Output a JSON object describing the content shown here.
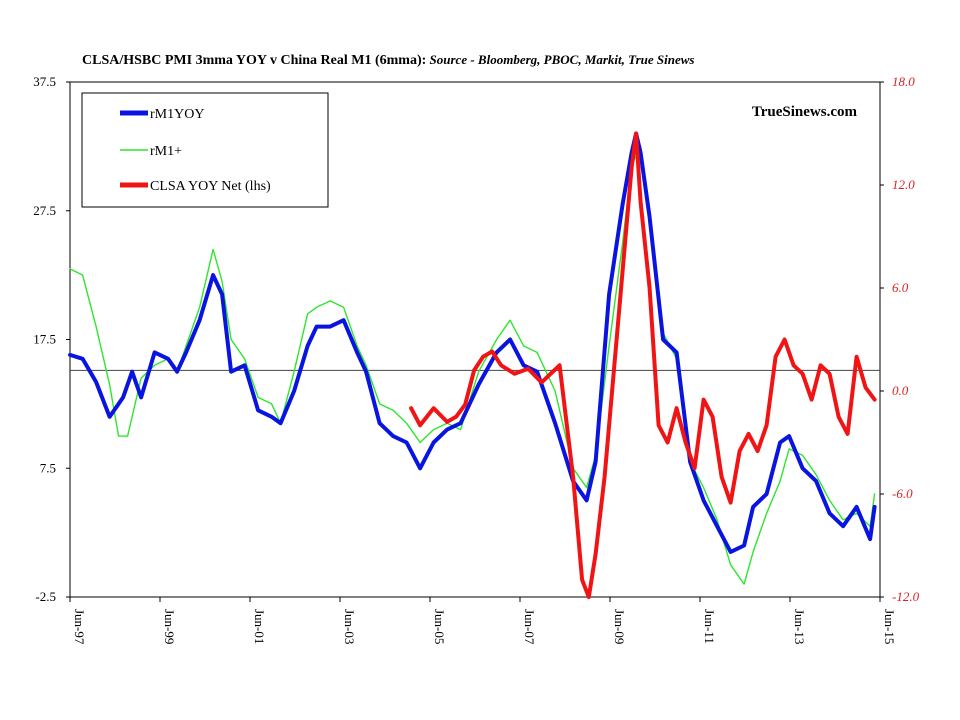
{
  "title": {
    "main": "CLSA/HSBC PMI 3mma YOY  v China Real M1 (6mma):",
    "source": " Source - Bloomberg, PBOC, Markit, True Sinews"
  },
  "watermark": "TrueSinews.com",
  "colors": {
    "rm1yoy": "#0a14e0",
    "rm1plus": "#2ee62e",
    "clsa": "#f01414",
    "right_axis_text": "#e02020"
  },
  "chart_data": {
    "type": "line",
    "title": "CLSA/HSBC PMI 3mma YOY  v China Real M1 (6mma): Source - Bloomberg, PBOC, Markit, True Sinews",
    "x_tick_labels": [
      "Jun-97",
      "Jun-99",
      "Jun-01",
      "Jun-03",
      "Jun-05",
      "Jun-07",
      "Jun-09",
      "Jun-11",
      "Jun-13",
      "Jun-15"
    ],
    "x_range": [
      1997.42,
      2015.42
    ],
    "y_left": {
      "range": [
        -2.5,
        37.5
      ],
      "ticks": [
        "37.5",
        "27.5",
        "17.5",
        "7.5",
        "-2.5"
      ]
    },
    "y_right": {
      "range": [
        -12.0,
        18.0
      ],
      "ticks": [
        "18.0",
        "12.0",
        "6.0",
        "0.0",
        "-6.0",
        "-12.0"
      ]
    },
    "reference_line_right": 1.2,
    "legend": {
      "placement": "top-left",
      "entries": [
        "rM1YOY",
        "rM1+",
        "CLSA YOY Net (lhs)"
      ]
    },
    "series": [
      {
        "name": "rM1YOY",
        "axis": "left",
        "x": [
          1997.42,
          1997.7,
          1998.0,
          1998.3,
          1998.6,
          1998.8,
          1999.0,
          1999.3,
          1999.6,
          1999.8,
          2000.0,
          2000.3,
          2000.6,
          2000.8,
          2001.0,
          2001.3,
          2001.6,
          2001.9,
          2002.1,
          2002.4,
          2002.7,
          2002.9,
          2003.2,
          2003.5,
          2003.8,
          2004.0,
          2004.3,
          2004.6,
          2004.9,
          2005.2,
          2005.5,
          2005.8,
          2006.1,
          2006.5,
          2006.9,
          2007.2,
          2007.5,
          2007.8,
          2008.2,
          2008.6,
          2008.9,
          2009.1,
          2009.4,
          2009.7,
          2009.9,
          2010.0,
          2010.1,
          2010.3,
          2010.6,
          2010.9,
          2011.2,
          2011.5,
          2011.8,
          2012.1,
          2012.4,
          2012.6,
          2012.9,
          2013.2,
          2013.4,
          2013.7,
          2014.0,
          2014.3,
          2014.6,
          2014.9,
          2015.2,
          2015.3
        ],
        "y": [
          16.3,
          16.0,
          14.2,
          11.5,
          13.0,
          15.0,
          13.0,
          16.5,
          16.0,
          15.0,
          16.5,
          19.0,
          22.5,
          21.0,
          15.0,
          15.5,
          12.0,
          11.5,
          11.0,
          13.5,
          17.0,
          18.5,
          18.5,
          19.0,
          16.5,
          15.0,
          11.0,
          10.0,
          9.5,
          7.5,
          9.5,
          10.5,
          11.0,
          14.0,
          16.5,
          17.5,
          15.5,
          15.0,
          11.0,
          6.5,
          5.0,
          8.0,
          21.0,
          28.0,
          32.0,
          33.5,
          32.0,
          27.0,
          17.5,
          16.5,
          8.0,
          5.0,
          3.0,
          1.0,
          1.5,
          4.5,
          5.5,
          9.5,
          10.0,
          7.5,
          6.5,
          4.0,
          3.0,
          4.5,
          2.0,
          4.5
        ]
      },
      {
        "name": "rM1+",
        "axis": "left",
        "x": [
          1997.42,
          1997.7,
          1998.0,
          1998.3,
          1998.5,
          1998.7,
          1999.0,
          1999.3,
          1999.6,
          1999.8,
          2000.0,
          2000.3,
          2000.6,
          2000.8,
          2001.0,
          2001.3,
          2001.6,
          2001.9,
          2002.1,
          2002.4,
          2002.7,
          2002.9,
          2003.2,
          2003.5,
          2003.8,
          2004.0,
          2004.3,
          2004.6,
          2004.9,
          2005.2,
          2005.5,
          2005.8,
          2006.1,
          2006.5,
          2006.9,
          2007.2,
          2007.5,
          2007.8,
          2008.2,
          2008.6,
          2008.9,
          2009.1,
          2009.4,
          2009.7,
          2009.9,
          2010.1,
          2010.3,
          2010.6,
          2010.9,
          2011.2,
          2011.5,
          2011.8,
          2012.1,
          2012.4,
          2012.6,
          2012.9,
          2013.2,
          2013.4,
          2013.7,
          2014.0,
          2014.3,
          2014.6,
          2014.9,
          2015.2,
          2015.3
        ],
        "y": [
          23.0,
          22.5,
          18.5,
          14.0,
          10.0,
          10.0,
          14.5,
          15.5,
          16.0,
          15.0,
          17.0,
          20.0,
          24.5,
          22.0,
          17.5,
          16.0,
          13.0,
          12.5,
          11.0,
          15.0,
          19.5,
          20.0,
          20.5,
          20.0,
          17.0,
          15.5,
          12.5,
          12.0,
          11.0,
          9.5,
          10.5,
          11.0,
          10.5,
          15.0,
          17.5,
          19.0,
          17.0,
          16.5,
          13.5,
          7.5,
          6.0,
          8.5,
          17.0,
          25.0,
          31.0,
          32.5,
          27.0,
          18.0,
          16.0,
          8.0,
          6.0,
          3.5,
          0.0,
          -1.5,
          1.0,
          4.0,
          6.5,
          9.0,
          8.5,
          7.0,
          5.0,
          3.5,
          4.0,
          3.0,
          5.5
        ]
      },
      {
        "name": "CLSA YOY Net (lhs)",
        "axis": "right",
        "x": [
          2005.0,
          2005.2,
          2005.5,
          2005.8,
          2006.0,
          2006.2,
          2006.4,
          2006.6,
          2006.8,
          2007.0,
          2007.3,
          2007.6,
          2007.9,
          2008.1,
          2008.3,
          2008.6,
          2008.8,
          2008.95,
          2009.1,
          2009.3,
          2009.6,
          2009.9,
          2010.0,
          2010.1,
          2010.3,
          2010.5,
          2010.7,
          2010.9,
          2011.1,
          2011.3,
          2011.5,
          2011.7,
          2011.9,
          2012.1,
          2012.3,
          2012.5,
          2012.7,
          2012.9,
          2013.1,
          2013.3,
          2013.5,
          2013.7,
          2013.9,
          2014.1,
          2014.3,
          2014.5,
          2014.7,
          2014.9,
          2015.1,
          2015.3
        ],
        "y": [
          -1.0,
          -2.0,
          -1.0,
          -1.8,
          -1.5,
          -0.8,
          1.2,
          2.0,
          2.3,
          1.5,
          1.0,
          1.3,
          0.5,
          1.0,
          1.5,
          -5.0,
          -11.0,
          -12.0,
          -9.5,
          -5.0,
          4.0,
          13.0,
          15.0,
          11.0,
          6.0,
          -2.0,
          -3.0,
          -1.0,
          -3.0,
          -4.5,
          -0.5,
          -1.5,
          -5.0,
          -6.5,
          -3.5,
          -2.5,
          -3.5,
          -2.0,
          2.0,
          3.0,
          1.5,
          1.0,
          -0.5,
          1.5,
          1.0,
          -1.5,
          -2.5,
          2.0,
          0.2,
          -0.5
        ]
      }
    ]
  }
}
